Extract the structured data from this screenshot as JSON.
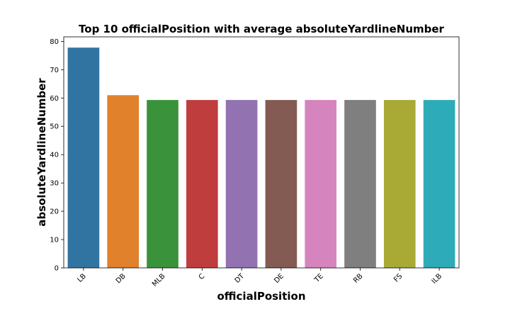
{
  "chart_data": {
    "type": "bar",
    "title": "Top 10 officialPosition with average absoluteYardlineNumber",
    "xlabel": "officialPosition",
    "ylabel": "absoluteYardlineNumber",
    "categories": [
      "LB",
      "DB",
      "MLB",
      "C",
      "DT",
      "DE",
      "TE",
      "RB",
      "FS",
      "ILB"
    ],
    "values": [
      77.8,
      61.0,
      59.3,
      59.3,
      59.3,
      59.3,
      59.3,
      59.3,
      59.3,
      59.3
    ],
    "ylim": [
      0,
      81.6
    ],
    "yticks": [
      0,
      10,
      20,
      30,
      40,
      50,
      60,
      70,
      80
    ],
    "colors": [
      "#3274a1",
      "#e1812c",
      "#3a923a",
      "#c03d3e",
      "#9372b2",
      "#845b53",
      "#d684bd",
      "#7f7f7f",
      "#a9aa35",
      "#2eabb8"
    ],
    "grid": false,
    "legend": "none"
  }
}
